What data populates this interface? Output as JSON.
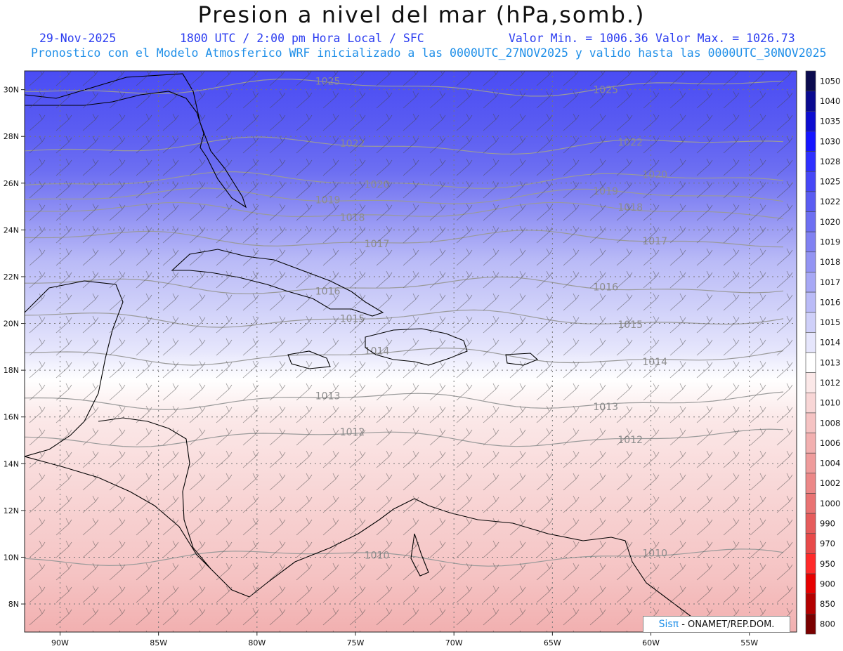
{
  "header": {
    "title": "Presion a nivel del mar (hPa,somb.)",
    "date": "29-Nov-2025",
    "time_info": "1800 UTC / 2:00 pm Hora Local / SFC",
    "min_label": "Valor Min. = 1006.36",
    "max_label": "Valor Max. = 1026.73",
    "model_info": "Pronostico con el Modelo Atmosferico WRF inicializado a las 0000UTC_27NOV2025 y valido hasta las  0000UTC_30NOV2025"
  },
  "map": {
    "lat_labels": [
      "30N",
      "28N",
      "26N",
      "24N",
      "22N",
      "20N",
      "18N",
      "16N",
      "14N",
      "12N",
      "10N",
      "8N"
    ],
    "lon_labels": [
      "90W",
      "85W",
      "80W",
      "75W",
      "70W",
      "65W",
      "60W",
      "55W"
    ]
  },
  "contours": [
    {
      "label": "1025",
      "value": 1025
    },
    {
      "label": "1022",
      "value": 1022
    },
    {
      "label": "1020",
      "value": 1020
    },
    {
      "label": "1019",
      "value": 1019
    },
    {
      "label": "1018",
      "value": 1018
    },
    {
      "label": "1017",
      "value": 1017
    },
    {
      "label": "1016",
      "value": 1016
    },
    {
      "label": "1015",
      "value": 1015
    },
    {
      "label": "1014",
      "value": 1014
    },
    {
      "label": "1013",
      "value": 1013
    },
    {
      "label": "1012",
      "value": 1012
    },
    {
      "label": "1010",
      "value": 1010
    }
  ],
  "colorbar": {
    "levels": [
      "1050",
      "1040",
      "1035",
      "1030",
      "1028",
      "1025",
      "1022",
      "1020",
      "1019",
      "1018",
      "1017",
      "1016",
      "1015",
      "1014",
      "1013",
      "1012",
      "1010",
      "1008",
      "1006",
      "1004",
      "1002",
      "1000",
      "990",
      "970",
      "950",
      "900",
      "850",
      "800"
    ],
    "colors": [
      "#0b0b4f",
      "#0a0a90",
      "#0d0dd0",
      "#1515ff",
      "#2e30ff",
      "#4647f7",
      "#5a5cf2",
      "#6d6ff2",
      "#8081f2",
      "#9394f3",
      "#a7a8f5",
      "#babbf7",
      "#cfd0f9",
      "#e6e6fc",
      "#ffffff",
      "#fbe8e8",
      "#f8d6d6",
      "#f5c3c3",
      "#f2b0b0",
      "#ef9c9c",
      "#ec8888",
      "#e97373",
      "#e65c5c",
      "#e84a4a",
      "#ff2a2a",
      "#e60000",
      "#b30000",
      "#7a0000"
    ]
  },
  "badge": {
    "brand": "Sisπ",
    "org": "- ONAMET/REP.DOM."
  }
}
